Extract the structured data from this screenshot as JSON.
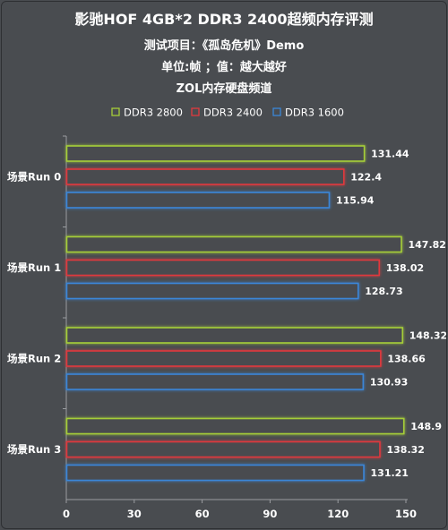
{
  "chart_data": {
    "type": "bar",
    "orientation": "horizontal",
    "title": "影驰HOF 4GB*2 DDR3 2400超频内存评测",
    "subtitles": [
      "测试项目：《孤岛危机》Demo",
      "单位:帧 ；值：越大越好",
      "ZOL内存硬盘频道"
    ],
    "categories": [
      "场景Run 0",
      "场景Run 1",
      "场景Run 2",
      "场景Run 3"
    ],
    "series": [
      {
        "name": "DDR3 2800",
        "color": "#a6ce39",
        "values": [
          131.44,
          147.82,
          148.32,
          148.9
        ]
      },
      {
        "name": "DDR3 2400",
        "color": "#e0393e",
        "values": [
          122.4,
          138.02,
          138.66,
          138.32
        ]
      },
      {
        "name": "DDR3 1600",
        "color": "#3a86d8",
        "values": [
          115.94,
          128.73,
          130.93,
          131.21
        ]
      }
    ],
    "xticks": [
      0,
      30,
      60,
      90,
      120,
      150
    ],
    "xlim": [
      0,
      150
    ],
    "grid": false,
    "legend_position": "top"
  }
}
